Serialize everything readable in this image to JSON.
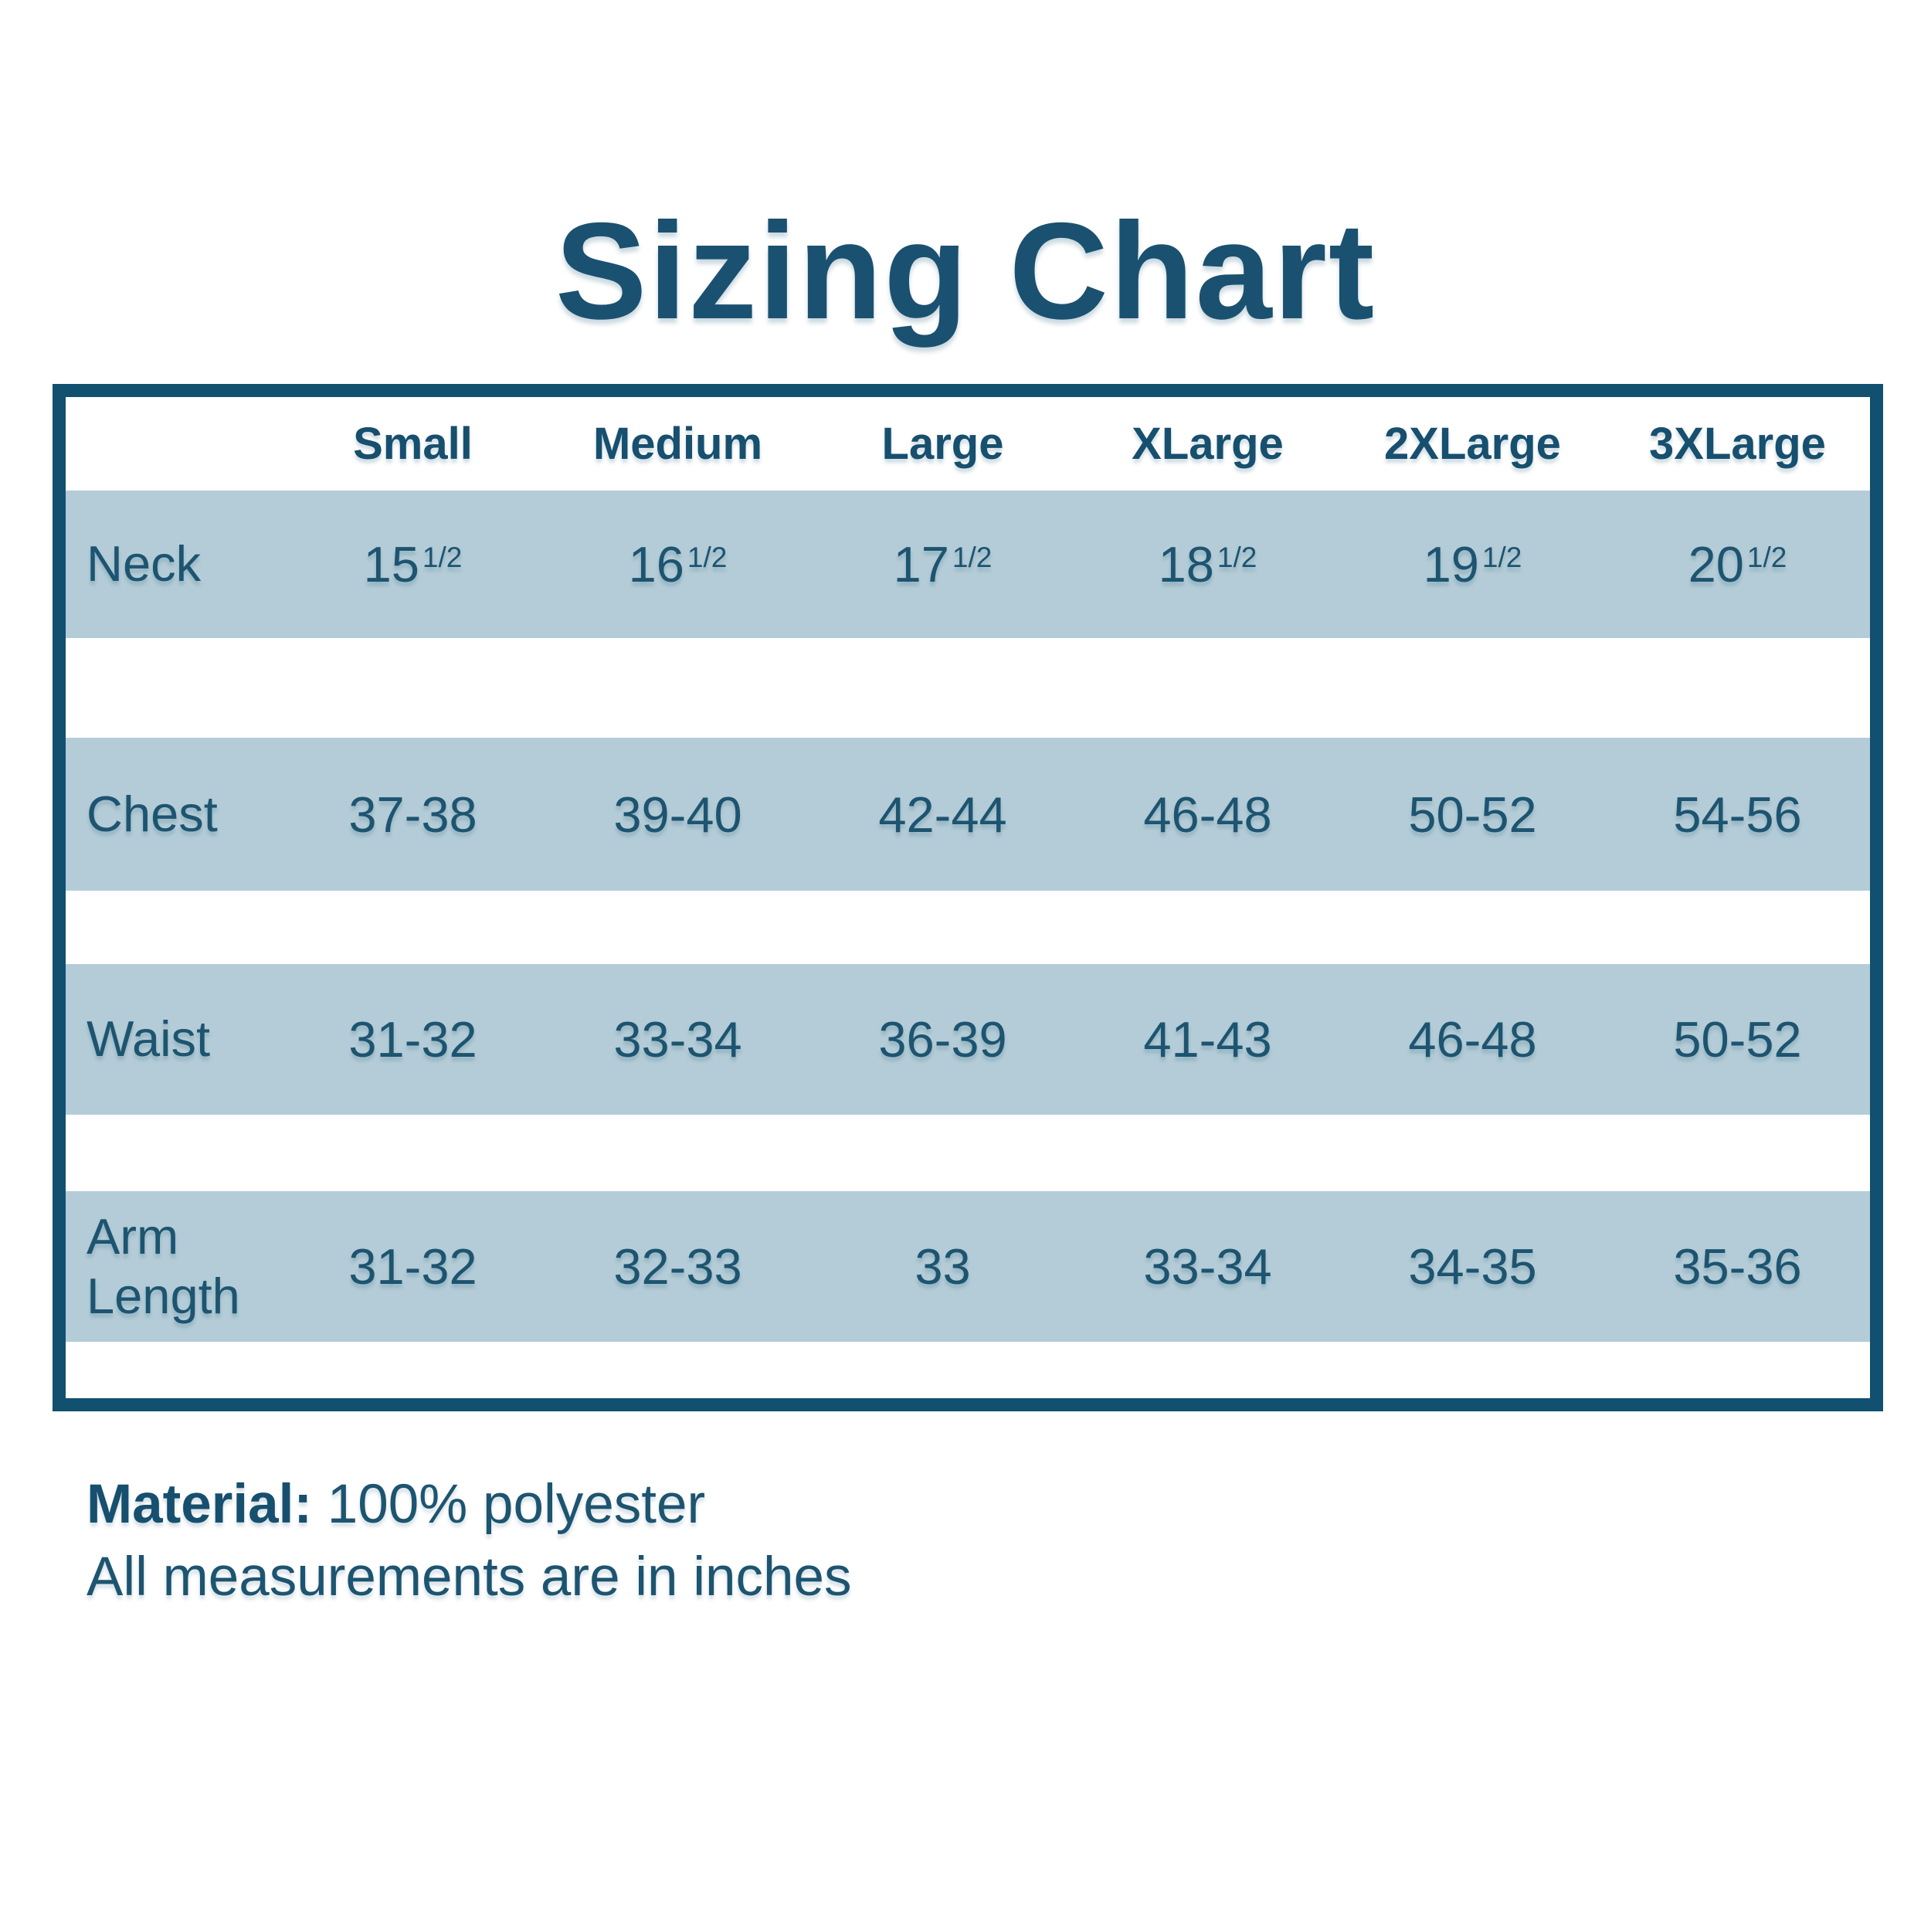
{
  "title": "Sizing Chart",
  "table": {
    "size_headers": [
      "Small",
      "Medium",
      "Large",
      "XLarge",
      "2XLarge",
      "3XLarge"
    ],
    "rows": [
      {
        "label": "Neck",
        "values": [
          {
            "base": "15",
            "sup": "1/2"
          },
          {
            "base": "16",
            "sup": "1/2"
          },
          {
            "base": "17",
            "sup": "1/2"
          },
          {
            "base": "18",
            "sup": "1/2"
          },
          {
            "base": "19",
            "sup": "1/2"
          },
          {
            "base": "20",
            "sup": "1/2"
          }
        ]
      },
      {
        "label": "Chest",
        "values": [
          "37-38",
          "39-40",
          "42-44",
          "46-48",
          "50-52",
          "54-56"
        ]
      },
      {
        "label": "Waist",
        "values": [
          "31-32",
          "33-34",
          "36-39",
          "41-43",
          "46-48",
          "50-52"
        ]
      },
      {
        "label": "Arm Length",
        "values": [
          "31-32",
          "32-33",
          "33",
          "33-34",
          "34-35",
          "35-36"
        ]
      }
    ]
  },
  "footer": {
    "material_label": "Material:",
    "material_value": "100% polyester",
    "note": "All measurements are in inches"
  },
  "colors": {
    "dark_blue_border": "#11506f",
    "text_blue": "#1d5470",
    "stripe_blue": "#b4ccd7",
    "background": "#ffffff"
  },
  "chart_data": {
    "type": "table",
    "title": "Sizing Chart",
    "columns": [
      "Small",
      "Medium",
      "Large",
      "XLarge",
      "2XLarge",
      "3XLarge"
    ],
    "rows": [
      {
        "measurement": "Neck",
        "values": [
          "15 1/2",
          "16 1/2",
          "17 1/2",
          "18 1/2",
          "19 1/2",
          "20 1/2"
        ]
      },
      {
        "measurement": "Chest",
        "values": [
          "37-38",
          "39-40",
          "42-44",
          "46-48",
          "50-52",
          "54-56"
        ]
      },
      {
        "measurement": "Waist",
        "values": [
          "31-32",
          "33-34",
          "36-39",
          "41-43",
          "46-48",
          "50-52"
        ]
      },
      {
        "measurement": "Arm Length",
        "values": [
          "31-32",
          "32-33",
          "33",
          "33-34",
          "34-35",
          "35-36"
        ]
      }
    ],
    "units": "inches",
    "notes": [
      "Material: 100% polyester",
      "All measurements are in inches"
    ]
  }
}
